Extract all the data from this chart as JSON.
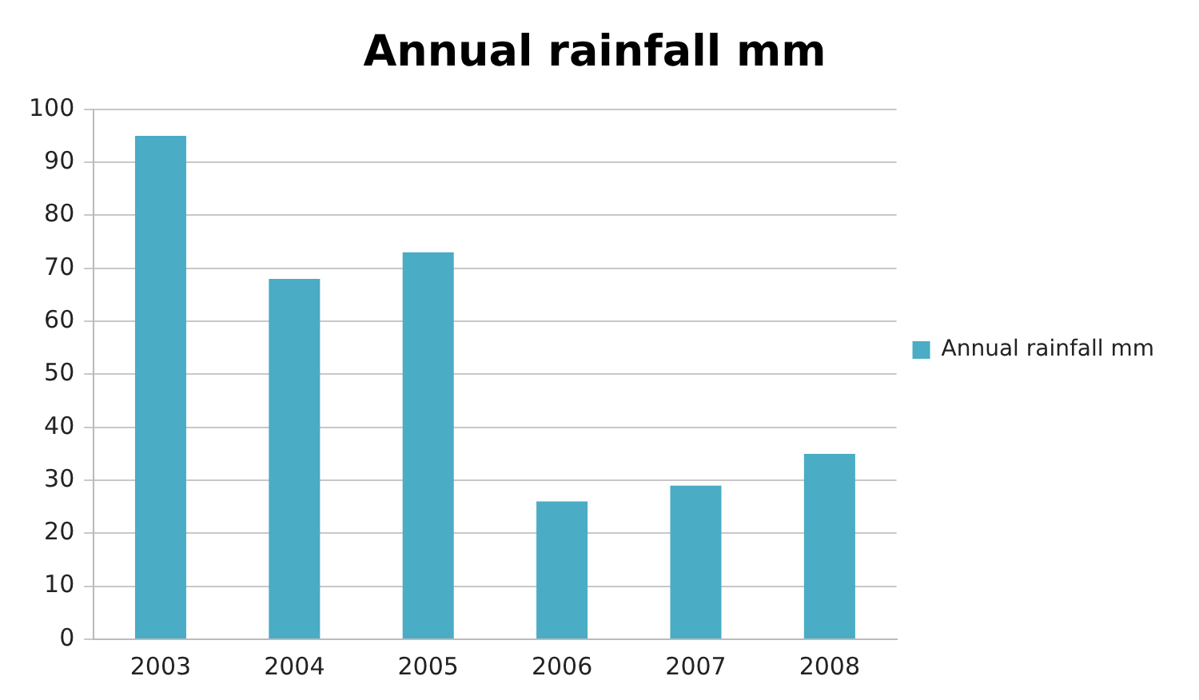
{
  "chart_data": {
    "type": "bar",
    "title": "Annual rainfall mm",
    "categories": [
      "2003",
      "2004",
      "2005",
      "2006",
      "2007",
      "2008"
    ],
    "series": [
      {
        "name": "Annual rainfall mm",
        "color": "#4aacc5",
        "values": [
          95,
          68,
          73,
          26,
          29,
          35
        ]
      }
    ],
    "ylim": [
      0,
      100
    ],
    "yticks": [
      0,
      10,
      20,
      30,
      40,
      50,
      60,
      70,
      80,
      90,
      100
    ],
    "grid": "y",
    "legend": "right"
  }
}
